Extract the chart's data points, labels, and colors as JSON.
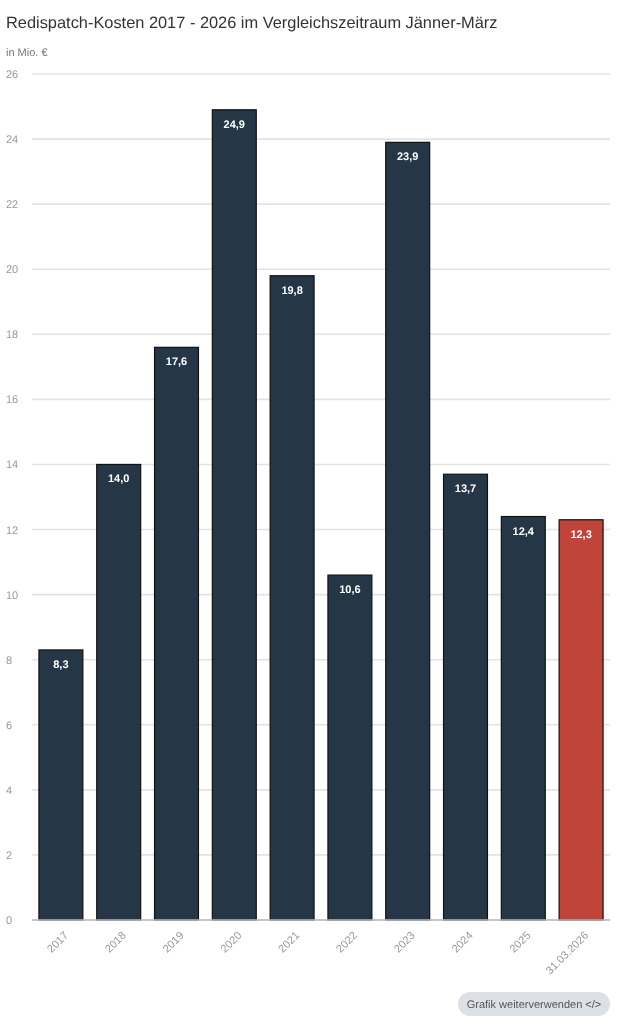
{
  "chart_data": {
    "type": "bar",
    "title": "Redispatch-Kosten 2017 - 2026 im Vergleichszeitraum Jänner-März",
    "subtitle": "in Mio. €",
    "categories": [
      "2017",
      "2018",
      "2019",
      "2020",
      "2021",
      "2022",
      "2023",
      "2024",
      "2025",
      "31.03.2026"
    ],
    "values": [
      8.3,
      14.0,
      17.6,
      24.9,
      19.8,
      10.6,
      23.9,
      13.7,
      12.4,
      12.3
    ],
    "value_labels": [
      "8,3",
      "14,0",
      "17,6",
      "24,9",
      "19,8",
      "10,6",
      "23,9",
      "13,7",
      "12,4",
      "12,3"
    ],
    "colors": [
      "#253746",
      "#253746",
      "#253746",
      "#253746",
      "#253746",
      "#253746",
      "#253746",
      "#253746",
      "#253746",
      "#c0443a"
    ],
    "ylim": [
      0,
      26
    ],
    "yticks": [
      0,
      2,
      4,
      6,
      8,
      10,
      12,
      14,
      16,
      18,
      20,
      22,
      24,
      26
    ],
    "grid": "y",
    "annotations": [
      "Grafik weiterverwenden </>"
    ]
  }
}
